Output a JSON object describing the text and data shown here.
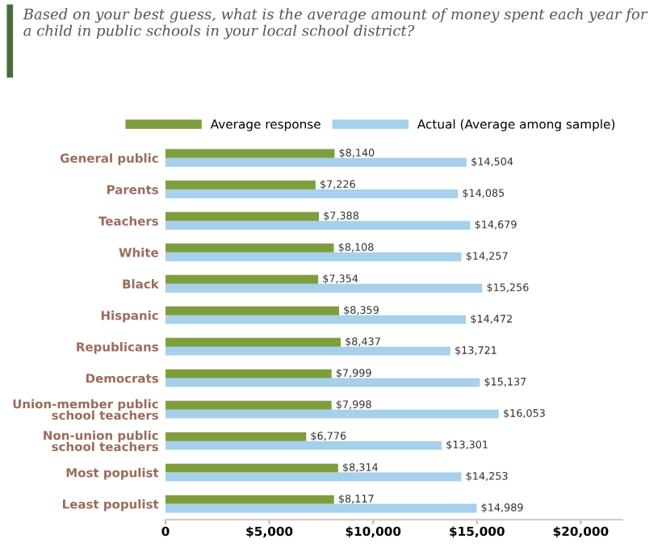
{
  "chart_data": {
    "type": "bar",
    "orientation": "horizontal",
    "title": "Based on your best guess, what is the average amount of money spent each year for a child in public schools in your local school district?",
    "categories": [
      "General public",
      "Parents",
      "Teachers",
      "White",
      "Black",
      "Hispanic",
      "Republicans",
      "Democrats",
      "Union-member public\nschool teachers",
      "Non-union public\nschool teachers",
      "Most populist",
      "Least populist"
    ],
    "series": [
      {
        "name": "Average response",
        "color": "#7e9e3e",
        "values": [
          8140,
          7226,
          7388,
          8108,
          7354,
          8359,
          8437,
          7999,
          7998,
          6776,
          8314,
          8117
        ],
        "value_labels": [
          "$8,140",
          "$7,226",
          "$7,388",
          "$8,108",
          "$7,354",
          "$8,359",
          "$8,437",
          "$7,999",
          "$7,998",
          "$6,776",
          "$8,314",
          "$8,117"
        ]
      },
      {
        "name": "Actual (Average among sample)",
        "color": "#a6d0ec",
        "values": [
          14504,
          14085,
          14679,
          14257,
          15256,
          14472,
          13721,
          15137,
          16053,
          13301,
          14253,
          14989
        ],
        "value_labels": [
          "$14,504",
          "$14,085",
          "$14,679",
          "$14,257",
          "$15,256",
          "$14,472",
          "$13,721",
          "$15,137",
          "$16,053",
          "$13,301",
          "$14,253",
          "$14,989"
        ]
      }
    ],
    "xlim": [
      0,
      22000
    ],
    "xticks": [
      {
        "value": 0,
        "label": "0"
      },
      {
        "value": 5000,
        "label": "$5,000"
      },
      {
        "value": 10000,
        "label": "$10,000"
      },
      {
        "value": 15000,
        "label": "$15,000"
      },
      {
        "value": 20000,
        "label": "$20,000"
      }
    ],
    "legend": "top",
    "grid": false
  }
}
